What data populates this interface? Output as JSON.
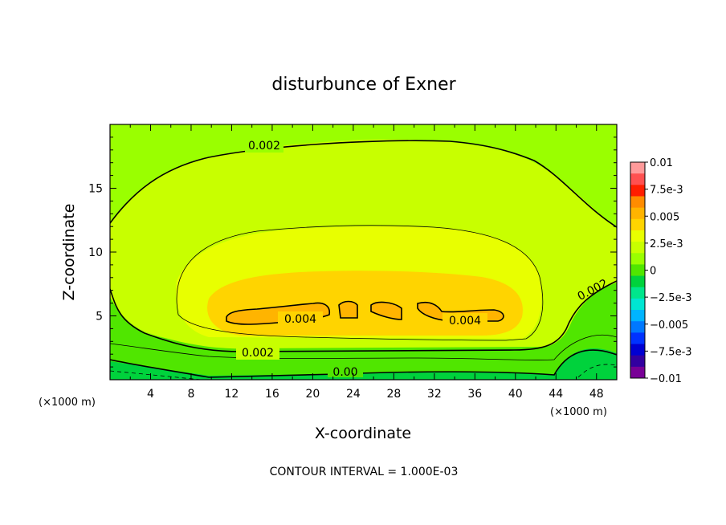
{
  "chart_data": {
    "type": "contour",
    "title": "disturbunce of Exner",
    "xlabel": "X-coordinate",
    "ylabel": "Z-coordinate",
    "x_unit": "(×1000 m)",
    "z_unit": "(×1000 m)",
    "xlim": [
      0,
      50
    ],
    "ylim": [
      0,
      20
    ],
    "x_ticks": [
      "4",
      "8",
      "12",
      "16",
      "20",
      "24",
      "28",
      "32",
      "36",
      "40",
      "44",
      "48"
    ],
    "x_tick_values": [
      4,
      8,
      12,
      16,
      20,
      24,
      28,
      32,
      36,
      40,
      44,
      48
    ],
    "y_ticks": [
      "5",
      "10",
      "15"
    ],
    "y_tick_values": [
      5,
      10,
      15
    ],
    "colorbar": {
      "labels": [
        "0.01",
        "7.5e-3",
        "0.005",
        "2.5e-3",
        "0",
        "−2.5e-3",
        "−0.005",
        "−7.5e-3",
        "−0.01"
      ],
      "colors": [
        "#ff9a9a",
        "#ff5050",
        "#ff1e00",
        "#ff8c00",
        "#ffb400",
        "#ffd400",
        "#e8ff00",
        "#c8ff00",
        "#9aff00",
        "#50e600",
        "#00d23c",
        "#00e68c",
        "#00e6d2",
        "#00b4ff",
        "#0078ff",
        "#0032ff",
        "#0000d2",
        "#3200a0",
        "#780096"
      ]
    },
    "contour_labels": [
      "0.002",
      "0.004",
      "0.004",
      "0.002",
      "0.002",
      "0.00"
    ],
    "footer": "CONTOUR INTERVAL =  1.000E-03"
  },
  "colors": {
    "axis": "#000000",
    "band_outer": "#9aff00",
    "band_mid": "#c8ff00",
    "band_upper": "#e8ff00",
    "band_core": "#ffd400",
    "band_peak": "#ffb400",
    "band_low": "#50e600",
    "band_ground": "#00d23c"
  }
}
